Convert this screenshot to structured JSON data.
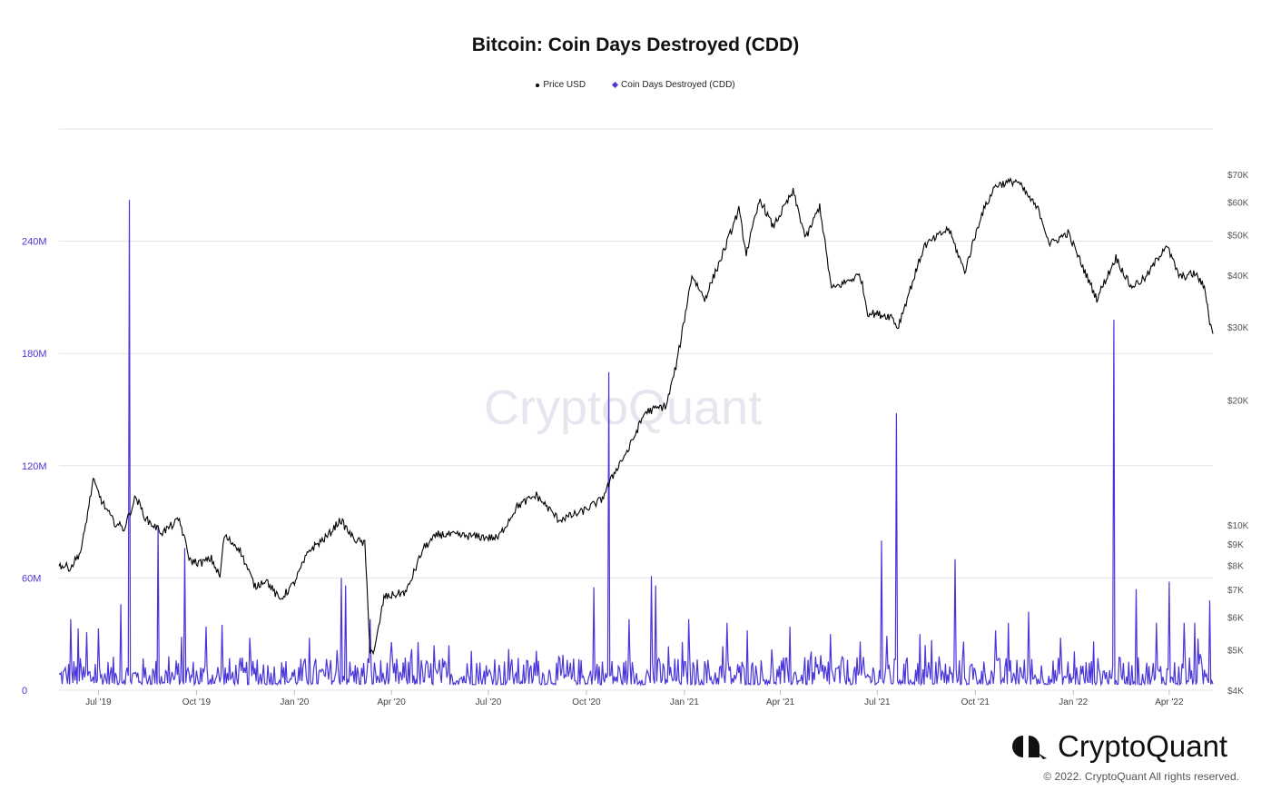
{
  "title": "Bitcoin: Coin Days Destroyed (CDD)",
  "legend": [
    {
      "label": "Price USD",
      "color": "#000000",
      "marker": "dot"
    },
    {
      "label": "Coin Days Destroyed (CDD)",
      "color": "#4a35d9",
      "marker": "diamond"
    }
  ],
  "watermark": "CryptoQuant",
  "brand": {
    "name": "CryptoQuant",
    "icon": "cryptoquant-logo-icon"
  },
  "copyright": "© 2022. CryptoQuant All rights reserved.",
  "colors": {
    "price": "#000000",
    "cdd": "#4a35d9",
    "grid": "#e3e3e3",
    "left_axis_text": "#4a35d9"
  },
  "chart_data": {
    "type": "line",
    "title": "Bitcoin: Coin Days Destroyed (CDD)",
    "x_range": [
      "2019-05-25",
      "2022-05-12"
    ],
    "x_ticks": [
      "Jul '19",
      "Oct '19",
      "Jan '20",
      "Apr '20",
      "Jul '20",
      "Oct '20",
      "Jan '21",
      "Apr '21",
      "Jul '21",
      "Oct '21",
      "Jan '22",
      "Apr '22"
    ],
    "y_left": {
      "ticks": [
        "0",
        "60M",
        "120M",
        "180M",
        "240M"
      ],
      "range": [
        0,
        300000000
      ]
    },
    "y_right": {
      "scale": "log",
      "ticks": [
        "$4K",
        "$5K",
        "$6K",
        "$7K",
        "$8K",
        "$9K",
        "$10K",
        "$20K",
        "$30K",
        "$40K",
        "$50K",
        "$60K",
        "$70K"
      ],
      "range": [
        4000,
        90000
      ]
    },
    "grid": true,
    "legend_position": "top-center",
    "series": [
      {
        "name": "Price USD",
        "axis": "right",
        "points": [
          [
            "2019-05-25",
            8000
          ],
          [
            "2019-06-05",
            7900
          ],
          [
            "2019-06-15",
            8700
          ],
          [
            "2019-06-26",
            12800
          ],
          [
            "2019-07-05",
            11300
          ],
          [
            "2019-07-15",
            10200
          ],
          [
            "2019-07-25",
            9800
          ],
          [
            "2019-08-05",
            11700
          ],
          [
            "2019-08-15",
            10300
          ],
          [
            "2019-08-30",
            9600
          ],
          [
            "2019-09-15",
            10300
          ],
          [
            "2019-09-25",
            8200
          ],
          [
            "2019-10-05",
            8100
          ],
          [
            "2019-10-15",
            8300
          ],
          [
            "2019-10-23",
            7500
          ],
          [
            "2019-10-27",
            9400
          ],
          [
            "2019-11-10",
            8800
          ],
          [
            "2019-11-25",
            7100
          ],
          [
            "2019-12-05",
            7400
          ],
          [
            "2019-12-18",
            6600
          ],
          [
            "2019-12-31",
            7200
          ],
          [
            "2020-01-15",
            8700
          ],
          [
            "2020-02-01",
            9400
          ],
          [
            "2020-02-13",
            10300
          ],
          [
            "2020-02-25",
            9300
          ],
          [
            "2020-03-07",
            9000
          ],
          [
            "2020-03-12",
            5000
          ],
          [
            "2020-03-16",
            4950
          ],
          [
            "2020-03-25",
            6700
          ],
          [
            "2020-04-15",
            6900
          ],
          [
            "2020-05-01",
            8800
          ],
          [
            "2020-05-15",
            9500
          ],
          [
            "2020-06-15",
            9400
          ],
          [
            "2020-07-10",
            9300
          ],
          [
            "2020-07-28",
            11100
          ],
          [
            "2020-08-15",
            11800
          ],
          [
            "2020-09-05",
            10300
          ],
          [
            "2020-09-25",
            10700
          ],
          [
            "2020-10-15",
            11500
          ],
          [
            "2020-10-30",
            13800
          ],
          [
            "2020-11-10",
            15300
          ],
          [
            "2020-11-25",
            18700
          ],
          [
            "2020-12-15",
            19400
          ],
          [
            "2020-12-25",
            24700
          ],
          [
            "2021-01-08",
            40000
          ],
          [
            "2021-01-20",
            35000
          ],
          [
            "2021-02-08",
            46400
          ],
          [
            "2021-02-21",
            57500
          ],
          [
            "2021-02-28",
            45200
          ],
          [
            "2021-03-13",
            61000
          ],
          [
            "2021-03-25",
            52300
          ],
          [
            "2021-04-13",
            63500
          ],
          [
            "2021-04-25",
            49000
          ],
          [
            "2021-05-08",
            58800
          ],
          [
            "2021-05-19",
            37000
          ],
          [
            "2021-06-15",
            40100
          ],
          [
            "2021-06-22",
            32500
          ],
          [
            "2021-07-15",
            31800
          ],
          [
            "2021-07-20",
            29800
          ],
          [
            "2021-08-14",
            47000
          ],
          [
            "2021-09-06",
            51800
          ],
          [
            "2021-09-21",
            40700
          ],
          [
            "2021-10-06",
            55300
          ],
          [
            "2021-10-20",
            65900
          ],
          [
            "2021-11-09",
            67500
          ],
          [
            "2021-11-30",
            57000
          ],
          [
            "2021-12-10",
            47500
          ],
          [
            "2021-12-27",
            50600
          ],
          [
            "2022-01-10",
            41800
          ],
          [
            "2022-01-23",
            35100
          ],
          [
            "2022-02-10",
            44100
          ],
          [
            "2022-02-24",
            37500
          ],
          [
            "2022-03-10",
            39400
          ],
          [
            "2022-03-29",
            47400
          ],
          [
            "2022-04-11",
            39500
          ],
          [
            "2022-04-25",
            40400
          ],
          [
            "2022-05-01",
            38500
          ],
          [
            "2022-05-05",
            36500
          ],
          [
            "2022-05-09",
            31000
          ],
          [
            "2022-05-12",
            28900
          ]
        ]
      },
      {
        "name": "Coin Days Destroyed (CDD)",
        "axis": "left",
        "spikes": [
          [
            "2019-06-05",
            38000000
          ],
          [
            "2019-06-12",
            33000000
          ],
          [
            "2019-06-20",
            31000000
          ],
          [
            "2019-07-01",
            33000000
          ],
          [
            "2019-07-22",
            46000000
          ],
          [
            "2019-07-30",
            262000000
          ],
          [
            "2019-08-26",
            88000000
          ],
          [
            "2019-09-20",
            76000000
          ],
          [
            "2019-10-10",
            34000000
          ],
          [
            "2019-10-25",
            35000000
          ],
          [
            "2019-11-20",
            28000000
          ],
          [
            "2020-01-15",
            28000000
          ],
          [
            "2020-02-14",
            60000000
          ],
          [
            "2020-02-18",
            56000000
          ],
          [
            "2020-03-12",
            38000000
          ],
          [
            "2020-04-20",
            22000000
          ],
          [
            "2020-05-11",
            24000000
          ],
          [
            "2020-06-15",
            21000000
          ],
          [
            "2020-07-20",
            22000000
          ],
          [
            "2020-08-15",
            21000000
          ],
          [
            "2020-10-08",
            55000000
          ],
          [
            "2020-10-22",
            170000000
          ],
          [
            "2020-11-10",
            38000000
          ],
          [
            "2020-12-01",
            61000000
          ],
          [
            "2020-12-05",
            56000000
          ],
          [
            "2021-01-05",
            38000000
          ],
          [
            "2021-02-10",
            36000000
          ],
          [
            "2021-03-01",
            32000000
          ],
          [
            "2021-04-10",
            34000000
          ],
          [
            "2021-05-18",
            30000000
          ],
          [
            "2021-06-15",
            26000000
          ],
          [
            "2021-07-05",
            80000000
          ],
          [
            "2021-07-19",
            148000000
          ],
          [
            "2021-08-10",
            30000000
          ],
          [
            "2021-09-12",
            70000000
          ],
          [
            "2021-09-20",
            26000000
          ],
          [
            "2021-10-20",
            32000000
          ],
          [
            "2021-11-01",
            36000000
          ],
          [
            "2021-11-20",
            42000000
          ],
          [
            "2021-12-20",
            28000000
          ],
          [
            "2022-01-20",
            26000000
          ],
          [
            "2022-02-08",
            198000000
          ],
          [
            "2022-03-01",
            54000000
          ],
          [
            "2022-03-20",
            36000000
          ],
          [
            "2022-04-01",
            58000000
          ],
          [
            "2022-04-15",
            36000000
          ],
          [
            "2022-04-25",
            36000000
          ],
          [
            "2022-05-09",
            48000000
          ]
        ],
        "baseline": [
          3000000,
          18000000
        ]
      }
    ]
  }
}
